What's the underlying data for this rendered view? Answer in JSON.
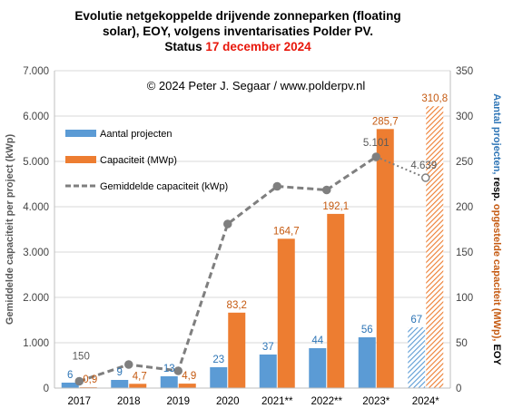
{
  "chart_data": {
    "type": "bar",
    "title_lines": [
      "Evolutie netgekoppelde drijvende zonneparken (floating",
      "solar), EOY, volgens inventarisaties Polder PV."
    ],
    "title_status_prefix": "Status ",
    "title_status_date": "17 december 2024",
    "copyright": "© 2024 Peter J. Segaar / www.polderpv.nl",
    "categories": [
      "2017",
      "2018",
      "2019",
      "2020",
      "2021**",
      "2022**",
      "2023*",
      "2024*"
    ],
    "ylabel_left": "Gemiddelde capaciteit per project (kWp)",
    "ylabel_right_parts": [
      "Aantal projecten, ",
      "resp.",
      " opgestelde capaciteit (MWp), ",
      "EOY"
    ],
    "ylim_left": [
      0,
      7000
    ],
    "ylim_right": [
      0,
      350
    ],
    "left_ticks": [
      "0",
      "1.000",
      "2.000",
      "3.000",
      "4.000",
      "5.000",
      "6.000",
      "7.000"
    ],
    "right_ticks": [
      "0",
      "50",
      "100",
      "150",
      "200",
      "250",
      "300",
      "350"
    ],
    "series": [
      {
        "name": "Aantal projecten",
        "axis": "right",
        "values": [
          6,
          9,
          13,
          23,
          37,
          44,
          56,
          67
        ],
        "labels": [
          "6",
          "9",
          "13",
          "23",
          "37",
          "44",
          "56",
          "67"
        ]
      },
      {
        "name": "Capaciteit (MWp)",
        "axis": "right",
        "values": [
          0.9,
          4.7,
          4.9,
          83.2,
          164.7,
          192.1,
          285.7,
          310.8
        ],
        "labels": [
          "0,9",
          "4,7",
          "4,9",
          "83,2",
          "164,7",
          "192,1",
          "285,7",
          "310,8"
        ]
      },
      {
        "name": "Gemiddelde capaciteit (kWp)",
        "axis": "left",
        "type": "line",
        "values": [
          150,
          520,
          380,
          3620,
          4450,
          4370,
          5101,
          4639
        ],
        "labels": [
          "150",
          "",
          "",
          "",
          "",
          "",
          "5.101",
          "4.639"
        ]
      }
    ],
    "legend_position": "top-left",
    "colors": {
      "projects": "#5b9bd5",
      "capacity": "#ed7d31",
      "line": "#7f7f7f",
      "projects_label": "#2e75b6",
      "capacity_label": "#c55a11",
      "title_red": "#e8170b"
    },
    "hatched_last_category": true,
    "grid": true
  }
}
